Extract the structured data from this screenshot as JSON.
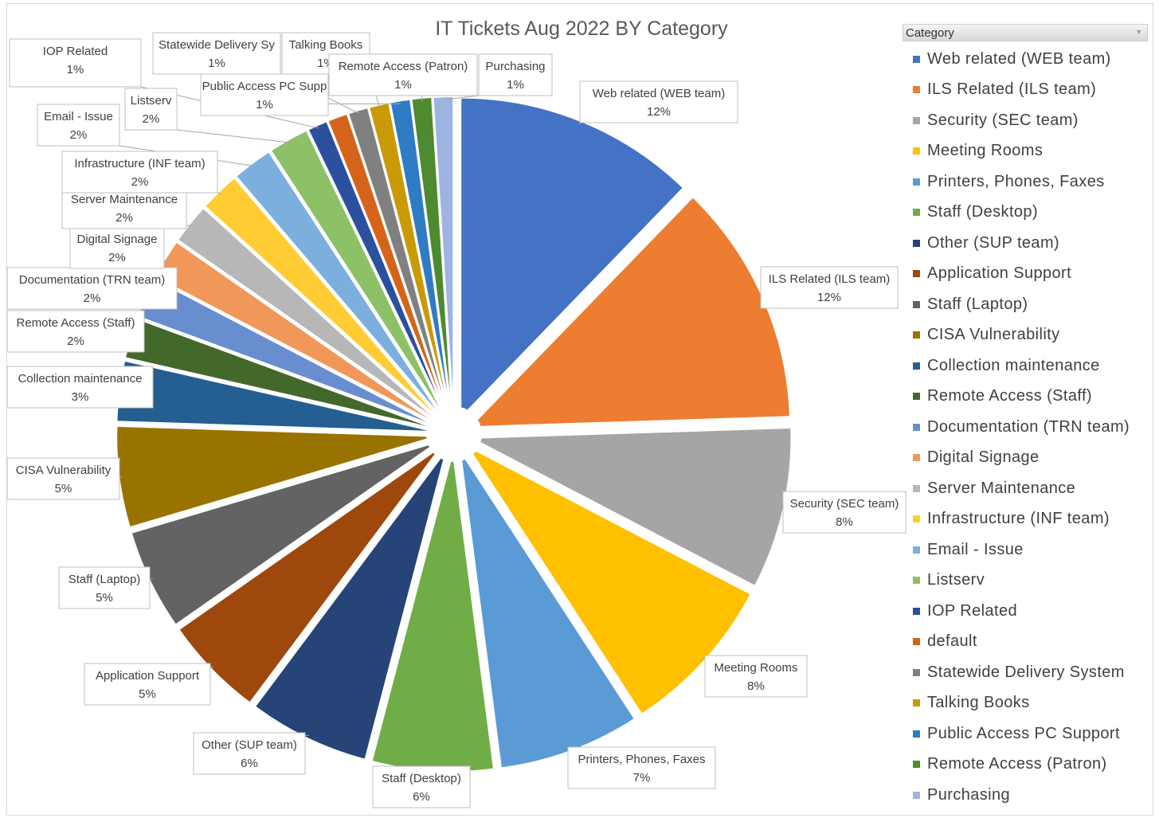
{
  "chart_data": {
    "type": "pie",
    "title": "IT Tickets Aug 2022 BY Category",
    "legend": {
      "title": "Category",
      "position": "right"
    },
    "slices": [
      {
        "name": "Web related (WEB team)",
        "value": 12,
        "label": "12%",
        "color": "#4472C4"
      },
      {
        "name": "ILS Related (ILS team)",
        "value": 12,
        "label": "12%",
        "color": "#ED7D31"
      },
      {
        "name": "Security (SEC team)",
        "value": 8,
        "label": "8%",
        "color": "#A5A5A5"
      },
      {
        "name": "Meeting Rooms",
        "value": 8,
        "label": "8%",
        "color": "#FFC000"
      },
      {
        "name": "Printers, Phones, Faxes",
        "value": 7,
        "label": "7%",
        "color": "#5B9BD5"
      },
      {
        "name": "Staff (Desktop)",
        "value": 6,
        "label": "6%",
        "color": "#70AD47"
      },
      {
        "name": "Other (SUP team)",
        "value": 6,
        "label": "6%",
        "color": "#264478"
      },
      {
        "name": "Application Support",
        "value": 5,
        "label": "5%",
        "color": "#9E480E"
      },
      {
        "name": "Staff (Laptop)",
        "value": 5,
        "label": "5%",
        "color": "#636363"
      },
      {
        "name": "CISA Vulnerability",
        "value": 5,
        "label": "5%",
        "color": "#997300"
      },
      {
        "name": "Collection maintenance",
        "value": 3,
        "label": "3%",
        "color": "#255E91"
      },
      {
        "name": "Remote Access (Staff)",
        "value": 2,
        "label": "2%",
        "color": "#43682B"
      },
      {
        "name": "Documentation (TRN team)",
        "value": 2,
        "label": "2%",
        "color": "#698ED0"
      },
      {
        "name": "Digital Signage",
        "value": 2,
        "label": "2%",
        "color": "#F1975A"
      },
      {
        "name": "Server Maintenance",
        "value": 2,
        "label": "2%",
        "color": "#B7B7B7"
      },
      {
        "name": "Infrastructure (INF team)",
        "value": 2,
        "label": "2%",
        "color": "#FFCD33"
      },
      {
        "name": "Email - Issue",
        "value": 2,
        "label": "2%",
        "color": "#7CAFDD"
      },
      {
        "name": "Listserv",
        "value": 2,
        "label": "2%",
        "color": "#8CC168"
      },
      {
        "name": "IOP Related",
        "value": 1,
        "label": "1%",
        "color": "#2C4F9E"
      },
      {
        "name": "default",
        "value": 1,
        "label": "1%",
        "color": "#D5641A"
      },
      {
        "name": "Statewide Delivery System",
        "value": 1,
        "label": "1%",
        "color": "#808080"
      },
      {
        "name": "Talking Books",
        "value": 1,
        "label": "1%",
        "color": "#C99A06"
      },
      {
        "name": "Public Access PC Support",
        "value": 1,
        "label": "1%",
        "color": "#2F7CC5"
      },
      {
        "name": "Remote Access (Patron)",
        "value": 1,
        "label": "1%",
        "color": "#4E8A2F"
      },
      {
        "name": "Purchasing",
        "value": 1,
        "label": "1%",
        "color": "#9DB4E0"
      }
    ],
    "labels": [
      {
        "name": "Web related (WEB team)",
        "text": "Web related (WEB team)",
        "value": "12%"
      },
      {
        "name": "ILS Related (ILS team)",
        "text": "ILS Related (ILS team)",
        "value": "12%"
      },
      {
        "name": "Security (SEC team)",
        "text": "Security (SEC team)",
        "value": "8%"
      },
      {
        "name": "Meeting Rooms",
        "text": "Meeting Rooms",
        "value": "8%"
      },
      {
        "name": "Printers, Phones, Faxes",
        "text": "Printers, Phones, Faxes",
        "value": "7%"
      },
      {
        "name": "Staff (Desktop)",
        "text": "Staff (Desktop)",
        "value": "6%"
      },
      {
        "name": "Other (SUP team)",
        "text": "Other (SUP team)",
        "value": "6%"
      },
      {
        "name": "Application Support",
        "text": "Application Support",
        "value": "5%"
      },
      {
        "name": "Staff (Laptop)",
        "text": "Staff (Laptop)",
        "value": "5%"
      },
      {
        "name": "CISA Vulnerability",
        "text": "CISA Vulnerability",
        "value": "5%"
      },
      {
        "name": "Collection maintenance",
        "text": "Collection maintenance",
        "value": "3%"
      },
      {
        "name": "Remote Access (Staff)",
        "text": "Remote Access (Staff)",
        "value": "2%"
      },
      {
        "name": "Documentation (TRN team)",
        "text": "Documentation (TRN team)",
        "value": "2%"
      },
      {
        "name": "Digital Signage",
        "text": "Digital Signage",
        "value": "2%"
      },
      {
        "name": "Server Maintenance",
        "text": "Server Maintenance",
        "value": "2%"
      },
      {
        "name": "Infrastructure (INF team)",
        "text": "Infrastructure (INF team)",
        "value": "2%"
      },
      {
        "name": "Email - Issue",
        "text": "Email - Issue",
        "value": "2%"
      },
      {
        "name": "Listserv",
        "text": "Listserv",
        "value": "2%"
      },
      {
        "name": "IOP Related",
        "text": "IOP Related",
        "value": "1%"
      },
      {
        "name": "Statewide Delivery System",
        "text": "Statewide Delivery Sy",
        "value": "1%"
      },
      {
        "name": "Talking Books",
        "text": "Talking Books",
        "value": "1%"
      },
      {
        "name": "Public Access PC Support",
        "text": "Public Access PC Supp",
        "value": "1%"
      },
      {
        "name": "Remote Access (Patron)",
        "text": "Remote Access (Patron)",
        "value": "1%"
      },
      {
        "name": "Purchasing",
        "text": "Purchasing",
        "value": "1%"
      }
    ]
  }
}
